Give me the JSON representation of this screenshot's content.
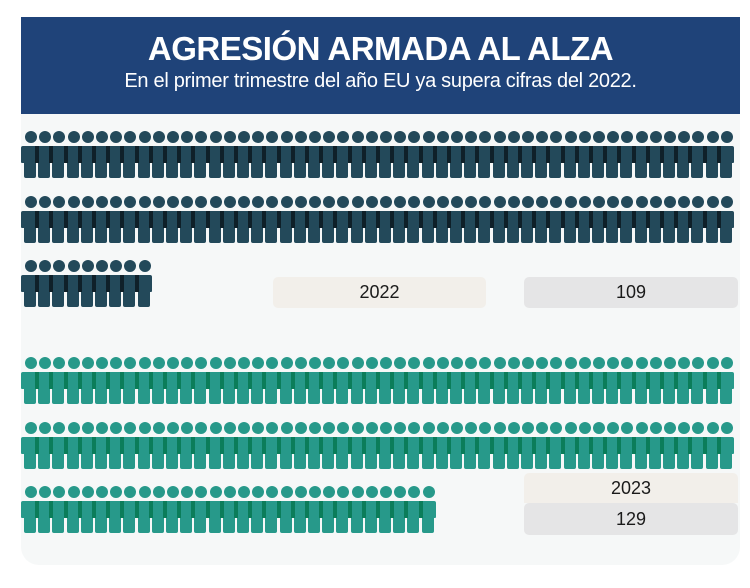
{
  "header": {
    "title": "AGRESIÓN ARMADA AL ALZA",
    "subtitle": "En el primer trimestre del año EU ya supera cifras del 2022."
  },
  "colors": {
    "header_bg": "#1f4379",
    "figure_2022": "#23495a",
    "figure_2023": "#27998a",
    "card_bg": "#f6f8f8"
  },
  "per_row": 50,
  "groups": [
    {
      "year": "2022",
      "value": "109",
      "count": 109,
      "style": "dark"
    },
    {
      "year": "2023",
      "value": "129",
      "count": 129,
      "style": "teal"
    }
  ],
  "chart_data": {
    "type": "bar",
    "subtype": "pictogram",
    "title": "AGRESIÓN ARMADA AL ALZA",
    "subtitle": "En el primer trimestre del año EU ya supera cifras del 2022.",
    "categories": [
      "2022",
      "2023"
    ],
    "values": [
      109,
      129
    ],
    "unit": "one person icon = 1",
    "icons_per_row": 50,
    "colors": [
      "#23495a",
      "#27998a"
    ],
    "xlabel": "",
    "ylabel": ""
  }
}
